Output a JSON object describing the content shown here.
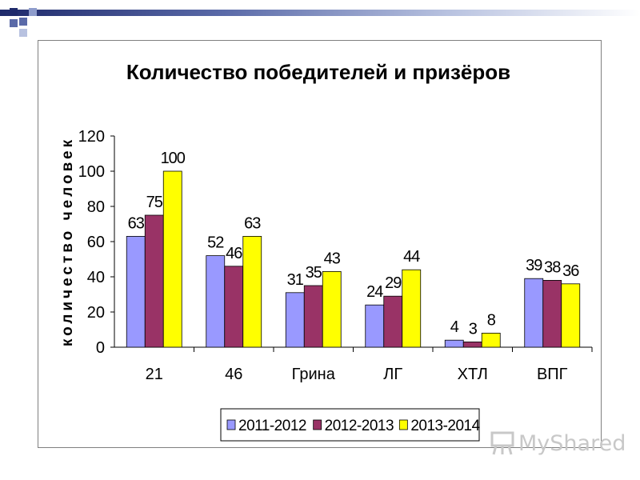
{
  "chart_data": {
    "type": "bar",
    "title": "Количество победителей и призёров",
    "ylabel": "количество человек",
    "xlabel": "",
    "categories": [
      "21",
      "46",
      "Грина",
      "ЛГ",
      "ХТЛ",
      "ВПГ"
    ],
    "series": [
      {
        "name": "2011-2012",
        "color": "#9999ff",
        "values": [
          63,
          52,
          31,
          24,
          4,
          39
        ]
      },
      {
        "name": "2012-2013",
        "color": "#993366",
        "values": [
          75,
          46,
          35,
          29,
          3,
          38
        ]
      },
      {
        "name": "2013-2014",
        "color": "#ffff00",
        "values": [
          100,
          63,
          43,
          44,
          8,
          36
        ]
      }
    ],
    "ylim": [
      0,
      120
    ],
    "yticks": [
      0,
      20,
      40,
      60,
      80,
      100,
      120
    ],
    "grid": false,
    "legend_position": "bottom"
  },
  "watermark": {
    "text": "MyShared",
    "icon": "classroom-board-icon"
  }
}
